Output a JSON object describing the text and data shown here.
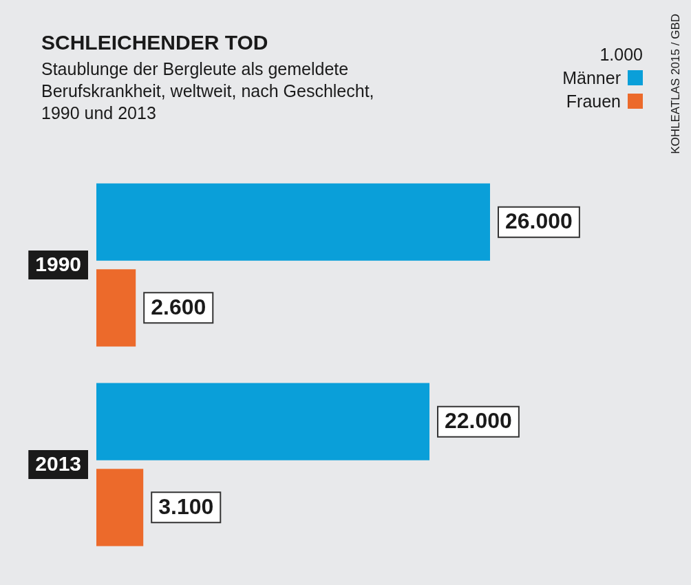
{
  "chart_data": {
    "type": "bar",
    "orientation": "horizontal",
    "title": "SCHLEICHENDER TOD",
    "subtitle": "Staublunge der Bergleute als gemeldete Berufskrankheit, weltweit, nach Geschlecht, 1990 und 2013",
    "categories": [
      "1990",
      "2013"
    ],
    "series": [
      {
        "name": "Männer",
        "color": "#0a9fd9",
        "values": [
          26000,
          22000
        ],
        "value_labels": [
          "26.000",
          "22.000"
        ]
      },
      {
        "name": "Frauen",
        "color": "#ec6a2b",
        "values": [
          2600,
          3100
        ],
        "value_labels": [
          "2.600",
          "3.100"
        ]
      }
    ],
    "legend": "top right",
    "annotations": [
      "1.000",
      "KOHLEATLAS 2015 / GBD"
    ]
  }
}
